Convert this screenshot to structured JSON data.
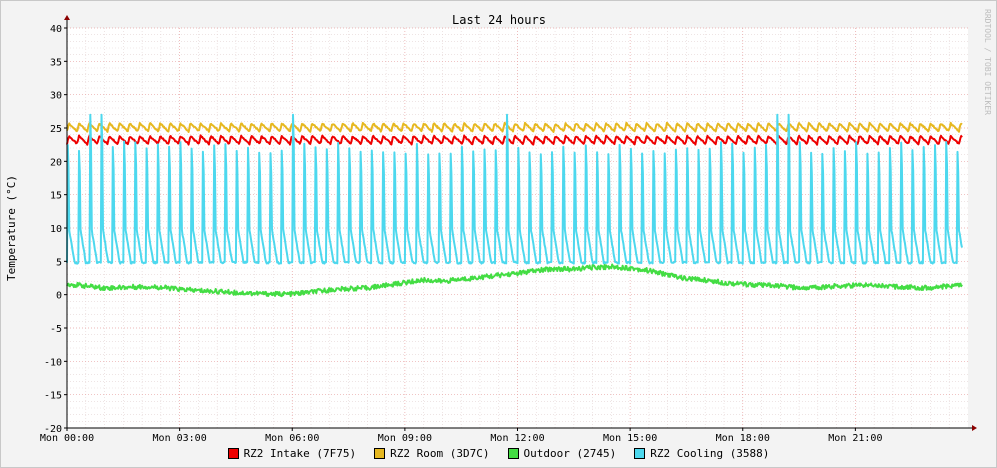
{
  "chart_data": {
    "type": "line",
    "title": "Last 24 hours",
    "ylabel": "Temperature (°C)",
    "xlabel": "",
    "watermark": "RRDTOOL / TOBI OETIKER",
    "ylim": [
      -20,
      40
    ],
    "yticks": [
      40,
      35,
      30,
      25,
      20,
      15,
      10,
      5,
      0,
      -5,
      -10,
      -15,
      -20
    ],
    "x_range_hours": [
      0,
      24
    ],
    "x_ticks": [
      {
        "h": 0,
        "label": "Mon 00:00"
      },
      {
        "h": 3,
        "label": "Mon 03:00"
      },
      {
        "h": 6,
        "label": "Mon 06:00"
      },
      {
        "h": 9,
        "label": "Mon 09:00"
      },
      {
        "h": 12,
        "label": "Mon 12:00"
      },
      {
        "h": 15,
        "label": "Mon 15:00"
      },
      {
        "h": 18,
        "label": "Mon 18:00"
      },
      {
        "h": 21,
        "label": "Mon 21:00"
      }
    ],
    "grid": true,
    "legend": "bottom",
    "series": [
      {
        "name": "RZ2 Intake (7F75)",
        "color": "#ee0000",
        "pattern": "sawtooth",
        "base": 22.6,
        "amplitude": 1.2,
        "period_h": 0.27,
        "x": [
          0,
          3,
          6,
          9,
          12,
          15,
          18,
          21,
          24
        ],
        "y": [
          23.2,
          23.0,
          23.2,
          23.0,
          23.1,
          23.0,
          23.2,
          23.0,
          23.1
        ]
      },
      {
        "name": "RZ2 Room (3D7C)",
        "color": "#e6b820",
        "pattern": "sawtooth",
        "base": 24.5,
        "amplitude": 1.2,
        "period_h": 0.27,
        "x": [
          0,
          3,
          6,
          9,
          12,
          15,
          18,
          21,
          24
        ],
        "y": [
          25.1,
          25.0,
          25.2,
          25.0,
          25.2,
          25.0,
          25.2,
          25.0,
          25.1
        ]
      },
      {
        "name": "Outdoor (2745)",
        "color": "#44dd44",
        "pattern": "noise",
        "x": [
          0,
          0.5,
          1,
          1.5,
          2,
          2.5,
          3,
          3.5,
          4,
          4.5,
          5,
          5.5,
          6,
          6.5,
          7,
          7.5,
          8,
          8.5,
          9,
          9.5,
          10,
          10.5,
          11,
          11.5,
          12,
          12.5,
          13,
          13.5,
          14,
          14.5,
          15,
          15.5,
          16,
          16.5,
          17,
          17.5,
          18,
          18.5,
          19,
          19.5,
          20,
          20.5,
          21,
          21.5,
          22,
          22.5,
          23,
          23.5,
          24
        ],
        "y": [
          1.6,
          1.3,
          1.0,
          1.1,
          1.2,
          1.1,
          0.8,
          0.6,
          0.5,
          0.3,
          0.2,
          0.1,
          0.1,
          0.4,
          0.7,
          0.9,
          1.0,
          1.4,
          1.8,
          2.2,
          2.0,
          2.3,
          2.6,
          2.9,
          3.2,
          3.6,
          3.9,
          3.8,
          4.1,
          4.2,
          4.0,
          3.6,
          3.0,
          2.4,
          2.2,
          1.8,
          1.6,
          1.4,
          1.3,
          1.0,
          1.1,
          1.3,
          1.4,
          1.5,
          1.2,
          1.1,
          1.0,
          1.3,
          1.6
        ]
      },
      {
        "name": "RZ2 Cooling (3588)",
        "color": "#4dd8ee",
        "pattern": "spikes",
        "base": 4.8,
        "period_h": 0.3,
        "peak": [
          21,
          23
        ],
        "tall_peaks_h": [
          0.8,
          6.1,
          11.8,
          19.1
        ],
        "tall_value": 27
      }
    ]
  }
}
